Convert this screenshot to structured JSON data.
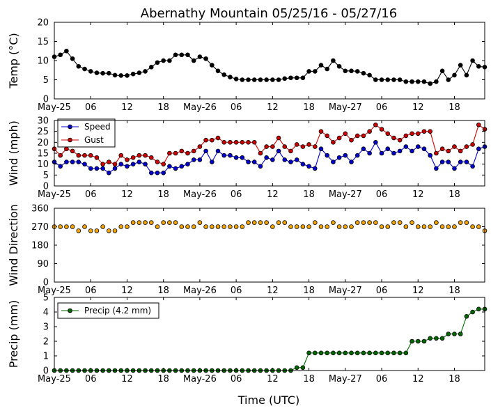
{
  "chart_data": {
    "title": "Abernathy Mountain 05/25/16 - 05/27/16",
    "xlabel": "Time (UTC)",
    "hours": [
      0,
      1,
      2,
      3,
      4,
      5,
      6,
      7,
      8,
      9,
      10,
      11,
      12,
      13,
      14,
      15,
      16,
      17,
      18,
      19,
      20,
      21,
      22,
      23,
      24,
      25,
      26,
      27,
      28,
      29,
      30,
      31,
      32,
      33,
      34,
      35,
      36,
      37,
      38,
      39,
      40,
      41,
      42,
      43,
      44,
      45,
      46,
      47,
      48,
      49,
      50,
      51,
      52,
      53,
      54,
      55,
      56,
      57,
      58,
      59,
      60,
      61,
      62,
      63,
      64,
      65,
      66,
      67,
      68,
      69,
      70,
      71
    ],
    "xlim": [
      0,
      71
    ],
    "xticks": [
      {
        "hour": 0,
        "label": "May-25"
      },
      {
        "hour": 6,
        "label": "06"
      },
      {
        "hour": 12,
        "label": "12"
      },
      {
        "hour": 18,
        "label": "18"
      },
      {
        "hour": 24,
        "label": "May-26"
      },
      {
        "hour": 30,
        "label": "06"
      },
      {
        "hour": 36,
        "label": "12"
      },
      {
        "hour": 42,
        "label": "18"
      },
      {
        "hour": 48,
        "label": "May-27"
      },
      {
        "hour": 54,
        "label": "06"
      },
      {
        "hour": 60,
        "label": "12"
      },
      {
        "hour": 66,
        "label": "18"
      }
    ],
    "panels": [
      {
        "id": "temp",
        "type": "line",
        "ylabel": "Temp (°C)",
        "ylim": [
          0,
          20
        ],
        "yticks": [
          0,
          5,
          10,
          15,
          20
        ],
        "series": [
          {
            "name": "Temp",
            "color": "#000000",
            "values": [
              11,
              11.5,
              12.5,
              10.5,
              8.5,
              7.8,
              7.2,
              6.8,
              6.7,
              6.7,
              6.2,
              6.1,
              6.1,
              6.5,
              6.8,
              7.2,
              8.3,
              9.5,
              10,
              10,
              11.5,
              11.5,
              11.5,
              10,
              11,
              10.5,
              8.8,
              7.3,
              6.3,
              5.7,
              5.2,
              5.0,
              5.0,
              5.0,
              5.0,
              5.0,
              5.0,
              5.0,
              5.3,
              5.5,
              5.5,
              5.5,
              7.2,
              7.2,
              8.8,
              7.8,
              10,
              8.5,
              7.3,
              7.3,
              7.2,
              6.7,
              6.2,
              5.0,
              5.0,
              5.0,
              5.0,
              5.0,
              4.5,
              4.5,
              4.5,
              4.5,
              4.0,
              4.5,
              7.3,
              5.0,
              6.2,
              8.8,
              6.2,
              10,
              8.5,
              8.3
            ]
          }
        ]
      },
      {
        "id": "wind",
        "type": "line",
        "ylabel": "Wind (mph)",
        "ylim": [
          0,
          30
        ],
        "yticks": [
          0,
          5,
          10,
          15,
          20,
          25,
          30
        ],
        "legend": {
          "position": "top-left",
          "entries": [
            "Speed",
            "Gust"
          ]
        },
        "series": [
          {
            "name": "Speed",
            "color": "#0000cc",
            "values": [
              11,
              9,
              11,
              11,
              11,
              10,
              8,
              8,
              8,
              6,
              8,
              10,
              9,
              10,
              11,
              10,
              6,
              6,
              6,
              9,
              8,
              9,
              10,
              12,
              12,
              16,
              11,
              16,
              14,
              14,
              13,
              13,
              11,
              11,
              9,
              13,
              12,
              16,
              12,
              11,
              12,
              10,
              9,
              8,
              17,
              14,
              11,
              13,
              14,
              11,
              14,
              17,
              15,
              20,
              15,
              17,
              15,
              16,
              18,
              16,
              18,
              17,
              14,
              8,
              11,
              11,
              8,
              11,
              11,
              9,
              17,
              18
            ]
          },
          {
            "name": "Gust",
            "color": "#cc0000",
            "values": [
              17,
              14,
              17,
              16,
              14,
              14,
              14,
              13,
              10,
              11,
              10,
              14,
              12,
              13,
              14,
              14,
              13,
              11,
              10,
              15,
              15,
              16,
              15,
              16,
              18,
              21,
              21,
              22,
              20,
              20,
              20,
              20,
              20,
              20,
              15,
              18,
              18,
              22,
              18,
              16,
              19,
              18,
              19,
              18,
              25,
              23,
              20,
              22,
              24,
              21,
              23,
              23,
              25,
              28,
              26,
              24,
              22,
              21,
              23,
              24,
              24,
              25,
              25,
              15,
              17,
              16,
              18,
              16,
              18,
              19,
              28,
              26
            ]
          }
        ]
      },
      {
        "id": "direction",
        "type": "scatter-line",
        "ylabel": "Wind Direction",
        "ylim": [
          0,
          360
        ],
        "yticks": [
          0,
          90,
          180,
          270,
          360
        ],
        "series": [
          {
            "name": "Direction",
            "color": "#f2a400",
            "values": [
              270,
              270,
              270,
              270,
              250,
              270,
              250,
              250,
              270,
              250,
              250,
              270,
              270,
              290,
              290,
              290,
              290,
              270,
              290,
              290,
              290,
              270,
              270,
              270,
              290,
              270,
              270,
              270,
              270,
              270,
              270,
              270,
              290,
              290,
              290,
              290,
              270,
              290,
              290,
              270,
              270,
              270,
              270,
              290,
              270,
              270,
              290,
              270,
              270,
              270,
              290,
              290,
              290,
              290,
              270,
              270,
              290,
              290,
              270,
              290,
              270,
              270,
              270,
              290,
              270,
              270,
              270,
              290,
              290,
              270,
              270,
              250
            ]
          }
        ]
      },
      {
        "id": "precip",
        "type": "line",
        "ylabel": "Precip (mm)",
        "ylim": [
          0,
          5
        ],
        "yticks": [
          0,
          1,
          2,
          3,
          4,
          5
        ],
        "legend": {
          "position": "top-left",
          "entries": [
            "Precip (4.2 mm)"
          ]
        },
        "series": [
          {
            "name": "Precip (4.2 mm)",
            "color": "#006600",
            "values": [
              0,
              0,
              0,
              0,
              0,
              0,
              0,
              0,
              0,
              0,
              0,
              0,
              0,
              0,
              0,
              0,
              0,
              0,
              0,
              0,
              0,
              0,
              0,
              0,
              0,
              0,
              0,
              0,
              0,
              0,
              0,
              0,
              0,
              0,
              0,
              0,
              0,
              0,
              0,
              0,
              0.2,
              0.2,
              1.2,
              1.2,
              1.2,
              1.2,
              1.2,
              1.2,
              1.2,
              1.2,
              1.2,
              1.2,
              1.2,
              1.2,
              1.2,
              1.2,
              1.2,
              1.2,
              1.2,
              2.0,
              2.0,
              2.0,
              2.2,
              2.2,
              2.2,
              2.5,
              2.5,
              2.5,
              3.7,
              4.0,
              4.2,
              4.2
            ]
          }
        ]
      }
    ]
  }
}
